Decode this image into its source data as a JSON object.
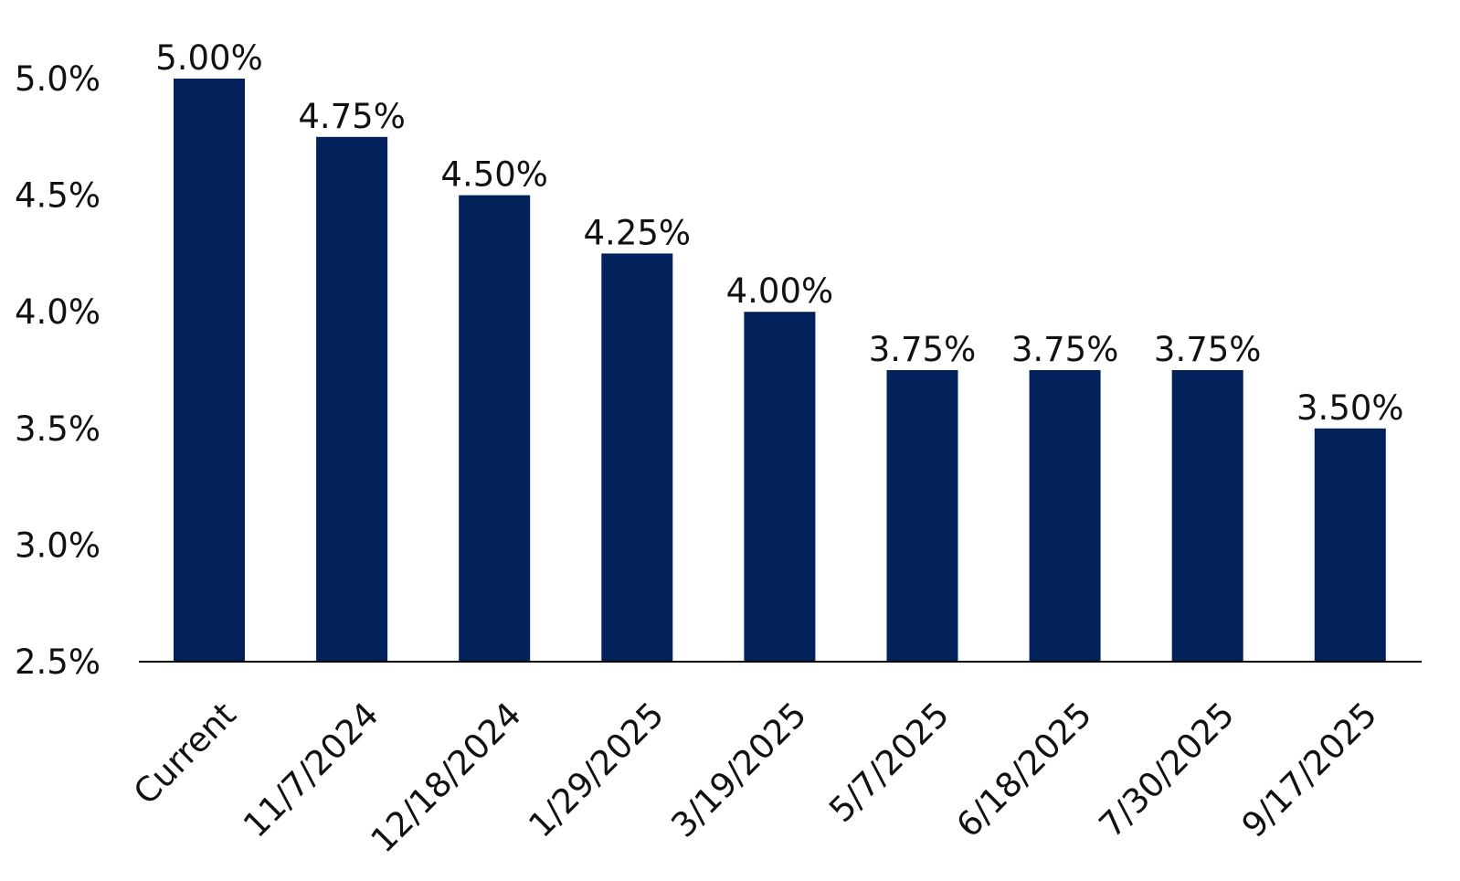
{
  "chart_data": {
    "type": "bar",
    "title": "",
    "xlabel": "",
    "ylabel": "",
    "categories": [
      "Current",
      "11/7/2024",
      "12/18/2024",
      "1/29/2025",
      "3/19/2025",
      "5/7/2025",
      "6/18/2025",
      "7/30/2025",
      "9/17/2025"
    ],
    "values": [
      5.0,
      4.75,
      4.5,
      4.25,
      4.0,
      3.75,
      3.75,
      3.75,
      3.5
    ],
    "data_labels": [
      "5.00%",
      "4.75%",
      "4.50%",
      "4.25%",
      "4.00%",
      "3.75%",
      "3.75%",
      "3.75%",
      "3.50%"
    ],
    "ylim": [
      2.5,
      5.0
    ],
    "yticks": [
      2.5,
      3.0,
      3.5,
      4.0,
      4.5,
      5.0
    ],
    "ytick_labels": [
      "2.5%",
      "3.0%",
      "3.5%",
      "4.0%",
      "4.5%",
      "5.0%"
    ],
    "grid": false,
    "legend": "none",
    "bar_color": "#03215A",
    "axis_color": "#000000"
  }
}
